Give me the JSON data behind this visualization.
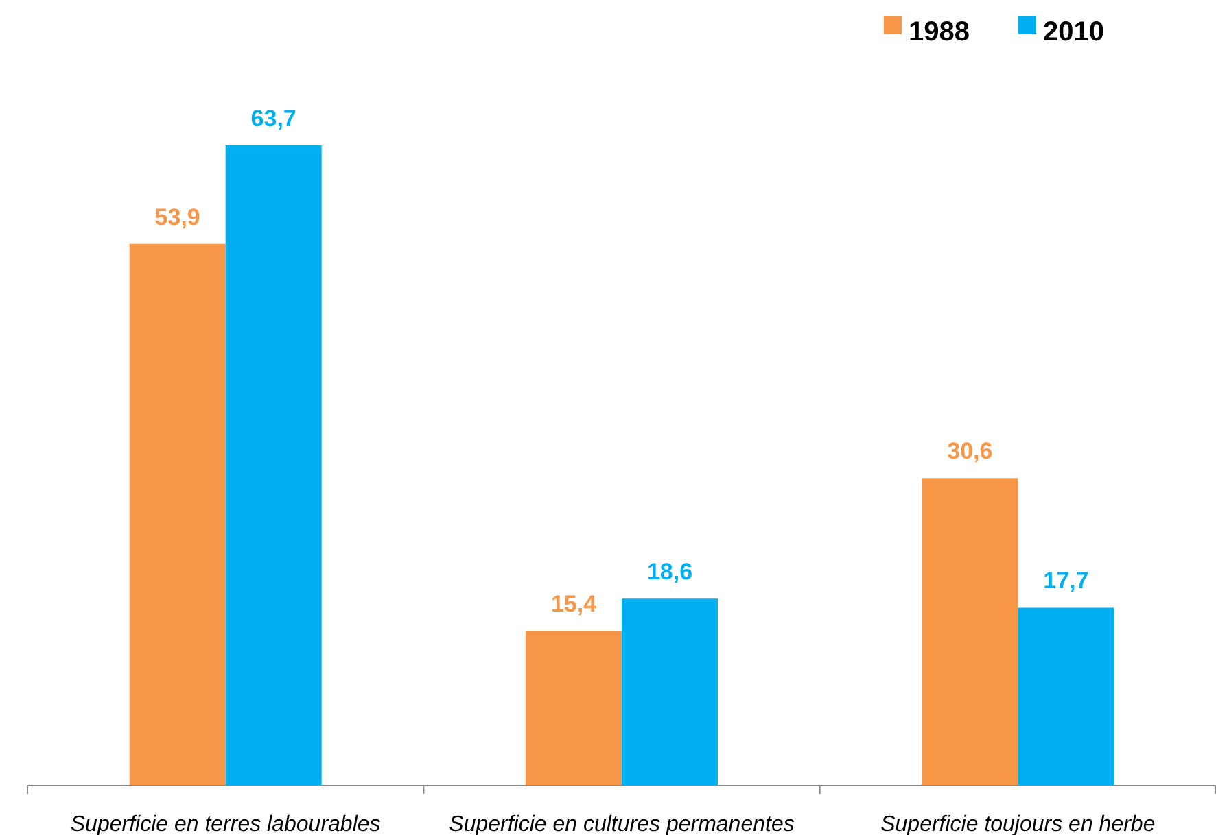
{
  "chart_data": {
    "type": "bar",
    "categories": [
      "Superficie en terres labourables",
      "Superficie en cultures permanentes",
      "Superficie toujours en herbe"
    ],
    "series": [
      {
        "name": "1988",
        "color": "#f79646",
        "values": [
          53.9,
          15.4,
          30.6
        ],
        "value_labels": [
          "53,9",
          "15,4",
          "30,6"
        ]
      },
      {
        "name": "2010",
        "color": "#00b0f0",
        "values": [
          63.7,
          18.6,
          17.7
        ],
        "value_labels": [
          "63,7",
          "18,6",
          "17,7"
        ]
      }
    ],
    "legend": "top right"
  }
}
